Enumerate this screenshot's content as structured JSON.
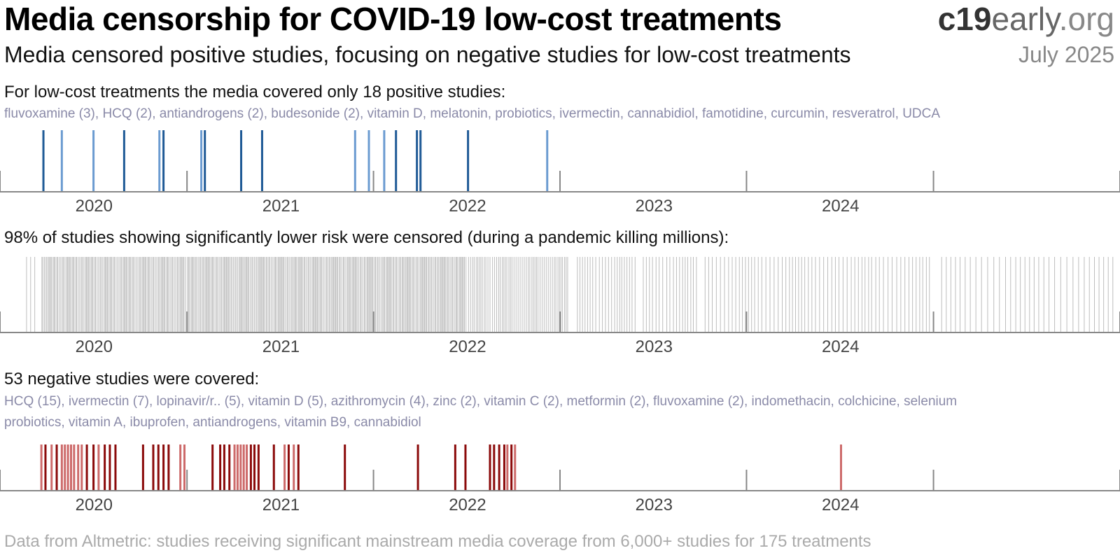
{
  "header": {
    "title": "Media censorship for COVID-19 low-cost treatments",
    "subtitle": "Media censored positive studies, focusing on negative studies for low-cost treatments",
    "brand_bold": "c19",
    "brand_mid": "early",
    "brand_tail": ".org",
    "date": "July 2025"
  },
  "footer": "Data from Altmetric: studies receiving significant mainstream media coverage from 6,000+ studies for 175 treatments",
  "colors": {
    "positive_dark": "#1f5a96",
    "positive_light": "#6b9bd1",
    "censored": "#bdbdbd",
    "negative_dark": "#8b0a0a",
    "negative_light": "#cd6a6a",
    "axis": "#888888"
  },
  "sections": {
    "positive": {
      "heading": "For low-cost treatments the media covered only 18 positive studies:",
      "treatments": [
        "fluvoxamine (3)",
        "HCQ (2)",
        "antiandrogens (2)",
        "budesonide (2)",
        "vitamin D",
        "melatonin",
        "probiotics",
        "ivermectin",
        "cannabidiol",
        "famotidine",
        "curcumin",
        "resveratrol",
        "UDCA"
      ]
    },
    "censored": {
      "heading": "98% of studies showing significantly lower risk were censored (during a pandemic killing millions):"
    },
    "negative": {
      "heading": "53 negative studies were covered:",
      "treatments_line1": [
        "HCQ (15)",
        "ivermectin (7)",
        "lopinavir/r.. (5)",
        "vitamin D (5)",
        "azithromycin (4)",
        "zinc (2)",
        "vitamin C (2)",
        "metformin (2)",
        "fluvoxamine (2)",
        "indomethacin",
        "colchicine",
        "selenium"
      ],
      "treatments_line2": [
        "probiotics",
        "vitamin A",
        "ibuprofen",
        "antiandrogens",
        "vitamin B9",
        "cannabidiol"
      ]
    }
  },
  "chart_data": [
    {
      "type": "timeline",
      "name": "positive",
      "x_range": [
        "2019-07-01",
        "2025-07-01"
      ],
      "x_ticks": [
        "2020",
        "2021",
        "2022",
        "2023",
        "2024"
      ],
      "events": [
        {
          "date": "2019-09-24",
          "shade": "dark"
        },
        {
          "date": "2019-10-30",
          "shade": "light"
        },
        {
          "date": "2019-12-31",
          "shade": "light"
        },
        {
          "date": "2020-02-29",
          "shade": "dark"
        },
        {
          "date": "2020-05-08",
          "shade": "light"
        },
        {
          "date": "2020-05-16",
          "shade": "dark"
        },
        {
          "date": "2020-07-29",
          "shade": "light"
        },
        {
          "date": "2020-08-05",
          "shade": "dark"
        },
        {
          "date": "2020-10-15",
          "shade": "dark"
        },
        {
          "date": "2020-11-25",
          "shade": "dark"
        },
        {
          "date": "2021-05-26",
          "shade": "light"
        },
        {
          "date": "2021-06-22",
          "shade": "light"
        },
        {
          "date": "2021-07-22",
          "shade": "light"
        },
        {
          "date": "2021-08-14",
          "shade": "dark"
        },
        {
          "date": "2021-09-24",
          "shade": "dark"
        },
        {
          "date": "2021-10-01",
          "shade": "dark"
        },
        {
          "date": "2022-01-02",
          "shade": "dark"
        },
        {
          "date": "2022-06-06",
          "shade": "light"
        }
      ]
    },
    {
      "type": "timeline",
      "name": "censored",
      "x_range": [
        "2019-07-01",
        "2025-07-01"
      ],
      "x_ticks": [
        "2020",
        "2021",
        "2022",
        "2023",
        "2024"
      ],
      "density_segments": [
        {
          "start": "2019-08-20",
          "end": "2019-09-10",
          "count": 3
        },
        {
          "start": "2019-09-20",
          "end": "2020-06-30",
          "count": 115
        },
        {
          "start": "2020-07-01",
          "end": "2021-12-31",
          "count": 230
        },
        {
          "start": "2022-01-01",
          "end": "2022-07-20",
          "count": 55
        },
        {
          "start": "2022-08-01",
          "end": "2022-11-30",
          "count": 22
        },
        {
          "start": "2022-12-10",
          "end": "2023-03-31",
          "count": 18
        },
        {
          "start": "2023-04-10",
          "end": "2023-12-31",
          "count": 38
        },
        {
          "start": "2024-01-01",
          "end": "2024-06-30",
          "count": 24
        },
        {
          "start": "2024-07-10",
          "end": "2025-06-25",
          "count": 34
        }
      ]
    },
    {
      "type": "timeline",
      "name": "negative",
      "x_range": [
        "2019-07-01",
        "2025-07-01"
      ],
      "x_ticks": [
        "2020",
        "2021",
        "2022",
        "2023",
        "2024"
      ],
      "events": [
        {
          "date": "2019-09-20",
          "shade": "light"
        },
        {
          "date": "2019-09-28",
          "shade": "dark"
        },
        {
          "date": "2019-10-10",
          "shade": "light"
        },
        {
          "date": "2019-10-20",
          "shade": "dark"
        },
        {
          "date": "2019-10-30",
          "shade": "light"
        },
        {
          "date": "2019-11-05",
          "shade": "light"
        },
        {
          "date": "2019-11-11",
          "shade": "light"
        },
        {
          "date": "2019-11-17",
          "shade": "light"
        },
        {
          "date": "2019-11-23",
          "shade": "light"
        },
        {
          "date": "2019-12-01",
          "shade": "light"
        },
        {
          "date": "2019-12-08",
          "shade": "light"
        },
        {
          "date": "2019-12-18",
          "shade": "dark"
        },
        {
          "date": "2019-12-31",
          "shade": "dark"
        },
        {
          "date": "2020-01-10",
          "shade": "light"
        },
        {
          "date": "2020-01-22",
          "shade": "dark"
        },
        {
          "date": "2020-02-01",
          "shade": "dark"
        },
        {
          "date": "2020-02-12",
          "shade": "dark"
        },
        {
          "date": "2020-04-06",
          "shade": "dark"
        },
        {
          "date": "2020-04-26",
          "shade": "dark"
        },
        {
          "date": "2020-05-06",
          "shade": "dark"
        },
        {
          "date": "2020-05-16",
          "shade": "dark"
        },
        {
          "date": "2020-05-26",
          "shade": "dark"
        },
        {
          "date": "2020-06-18",
          "shade": "light"
        },
        {
          "date": "2020-06-26",
          "shade": "light"
        },
        {
          "date": "2020-08-20",
          "shade": "dark"
        },
        {
          "date": "2020-09-04",
          "shade": "dark"
        },
        {
          "date": "2020-09-12",
          "shade": "dark"
        },
        {
          "date": "2020-09-22",
          "shade": "dark"
        },
        {
          "date": "2020-10-02",
          "shade": "light"
        },
        {
          "date": "2020-10-08",
          "shade": "light"
        },
        {
          "date": "2020-10-14",
          "shade": "light"
        },
        {
          "date": "2020-10-20",
          "shade": "light"
        },
        {
          "date": "2020-10-26",
          "shade": "light"
        },
        {
          "date": "2020-11-03",
          "shade": "dark"
        },
        {
          "date": "2020-11-10",
          "shade": "dark"
        },
        {
          "date": "2020-11-18",
          "shade": "dark"
        },
        {
          "date": "2020-12-18",
          "shade": "dark"
        },
        {
          "date": "2021-01-08",
          "shade": "light"
        },
        {
          "date": "2021-01-16",
          "shade": "dark"
        },
        {
          "date": "2021-01-26",
          "shade": "light"
        },
        {
          "date": "2021-02-04",
          "shade": "dark"
        },
        {
          "date": "2021-05-06",
          "shade": "dark"
        },
        {
          "date": "2021-09-26",
          "shade": "dark"
        },
        {
          "date": "2021-12-08",
          "shade": "dark"
        },
        {
          "date": "2021-12-28",
          "shade": "dark"
        },
        {
          "date": "2022-02-14",
          "shade": "dark"
        },
        {
          "date": "2022-02-22",
          "shade": "dark"
        },
        {
          "date": "2022-03-04",
          "shade": "dark"
        },
        {
          "date": "2022-03-14",
          "shade": "dark"
        },
        {
          "date": "2022-03-20",
          "shade": "light"
        },
        {
          "date": "2022-03-28",
          "shade": "dark"
        },
        {
          "date": "2022-04-04",
          "shade": "light"
        },
        {
          "date": "2024-01-02",
          "shade": "light"
        }
      ]
    }
  ]
}
